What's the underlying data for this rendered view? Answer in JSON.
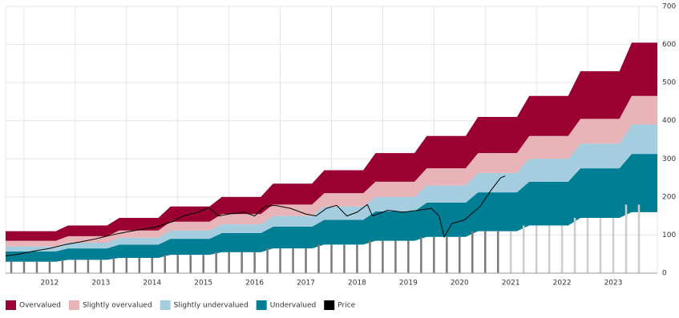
{
  "chart_data": {
    "type": "valuation-bands",
    "xlim": [
      2011.64,
      2024.36
    ],
    "ylim": [
      0,
      700
    ],
    "yticks": [
      0,
      100,
      200,
      300,
      400,
      500,
      600,
      700
    ],
    "xticks": [
      {
        "value": 2012.5,
        "label": "2012"
      },
      {
        "value": 2013.5,
        "label": "2013"
      },
      {
        "value": 2014.5,
        "label": "2014"
      },
      {
        "value": 2015.5,
        "label": "2015"
      },
      {
        "value": 2016.5,
        "label": "2016"
      },
      {
        "value": 2017.5,
        "label": "2017"
      },
      {
        "value": 2018.5,
        "label": "2018"
      },
      {
        "value": 2019.5,
        "label": "2019"
      },
      {
        "value": 2020.5,
        "label": "2020"
      },
      {
        "value": 2021.5,
        "label": "2021"
      },
      {
        "value": 2022.5,
        "label": "2022"
      },
      {
        "value": 2023.5,
        "label": "2023"
      }
    ],
    "xgrid": [
      2012,
      2013,
      2014,
      2015,
      2016,
      2017,
      2018,
      2019,
      2020,
      2021,
      2022,
      2023,
      2024
    ],
    "grid": true,
    "band_x": [
      2011.64,
      2012.62,
      2012.86,
      2013.62,
      2013.86,
      2014.62,
      2014.86,
      2015.62,
      2015.86,
      2016.62,
      2016.86,
      2017.62,
      2017.86,
      2018.62,
      2018.86,
      2019.62,
      2019.86,
      2020.62,
      2020.86,
      2021.62,
      2021.86,
      2022.62,
      2022.86,
      2023.62,
      2023.86,
      2024.36
    ],
    "band_floor": [
      30,
      30,
      35,
      35,
      40,
      40,
      48,
      48,
      55,
      55,
      65,
      65,
      75,
      75,
      85,
      85,
      95,
      95,
      110,
      110,
      125,
      125,
      145,
      145,
      160,
      160
    ],
    "bands": [
      {
        "name": "Undervalued",
        "color": "#007f94",
        "values": [
          57,
          57,
          65,
          65,
          75,
          75,
          90,
          90,
          105,
          105,
          122,
          122,
          140,
          140,
          162,
          162,
          185,
          185,
          212,
          212,
          240,
          240,
          275,
          275,
          313,
          313
        ]
      },
      {
        "name": "Slightly undervalued",
        "color": "#a4cde0",
        "values": [
          70,
          70,
          80,
          80,
          93,
          93,
          112,
          112,
          128,
          128,
          150,
          150,
          175,
          175,
          200,
          200,
          230,
          230,
          263,
          263,
          300,
          300,
          340,
          340,
          390,
          390
        ]
      },
      {
        "name": "Slightly overvalued",
        "color": "#e8b4b8",
        "values": [
          85,
          85,
          97,
          97,
          112,
          112,
          135,
          135,
          155,
          155,
          180,
          180,
          210,
          210,
          240,
          240,
          275,
          275,
          315,
          315,
          360,
          360,
          405,
          405,
          465,
          465
        ]
      },
      {
        "name": "Overvalued",
        "color": "#9b0032",
        "values": [
          110,
          110,
          125,
          125,
          145,
          145,
          175,
          175,
          200,
          200,
          235,
          235,
          270,
          270,
          315,
          315,
          360,
          360,
          410,
          410,
          465,
          465,
          530,
          530,
          605,
          605
        ]
      }
    ],
    "price": {
      "name": "Price",
      "color": "#000000",
      "x": [
        2011.64,
        2011.9,
        2012.2,
        2012.5,
        2012.8,
        2013.1,
        2013.4,
        2013.7,
        2014.0,
        2014.3,
        2014.6,
        2014.9,
        2015.1,
        2015.4,
        2015.6,
        2015.8,
        2016.0,
        2016.3,
        2016.5,
        2016.7,
        2016.9,
        2017.2,
        2017.5,
        2017.7,
        2017.9,
        2018.1,
        2018.3,
        2018.5,
        2018.7,
        2018.8,
        2019.1,
        2019.4,
        2019.7,
        2019.95,
        2020.1,
        2020.2,
        2020.35,
        2020.6,
        2020.9,
        2021.1,
        2021.3,
        2021.39
      ],
      "values": [
        45,
        50,
        58,
        65,
        75,
        82,
        90,
        100,
        108,
        115,
        122,
        135,
        150,
        160,
        172,
        150,
        155,
        160,
        150,
        175,
        178,
        170,
        155,
        150,
        170,
        178,
        150,
        160,
        180,
        150,
        165,
        160,
        165,
        170,
        150,
        95,
        130,
        140,
        175,
        215,
        250,
        255
      ]
    },
    "bars": [
      {
        "color": "#7a7a7a",
        "x": [
          2011.75,
          2012.0,
          2012.25,
          2012.5,
          2012.75,
          2013.0,
          2013.25,
          2013.5,
          2013.75,
          2014.0,
          2014.25,
          2014.5,
          2014.75,
          2015.0,
          2015.25,
          2015.5,
          2015.75,
          2016.0,
          2016.25,
          2016.5,
          2016.75,
          2017.0,
          2017.25,
          2017.5,
          2017.75,
          2018.0,
          2018.25,
          2018.5,
          2018.75,
          2019.0,
          2019.25,
          2019.5,
          2019.75,
          2020.0,
          2020.25,
          2020.5,
          2020.75,
          2021.0,
          2021.25
        ],
        "values": [
          30,
          30,
          30,
          30,
          35,
          35,
          35,
          35,
          40,
          40,
          40,
          40,
          48,
          48,
          48,
          48,
          55,
          55,
          55,
          55,
          65,
          65,
          65,
          65,
          75,
          75,
          75,
          75,
          85,
          85,
          85,
          85,
          95,
          95,
          95,
          95,
          110,
          110,
          110
        ]
      },
      {
        "color": "#cccccc",
        "x": [
          2021.5,
          2021.75,
          2022.0,
          2022.25,
          2022.5,
          2022.75,
          2023.0,
          2023.25,
          2023.5,
          2023.75,
          2024.0
        ],
        "values": [
          110,
          125,
          125,
          125,
          125,
          145,
          145,
          145,
          145,
          180,
          180
        ]
      }
    ],
    "legend": "bottom-left"
  }
}
